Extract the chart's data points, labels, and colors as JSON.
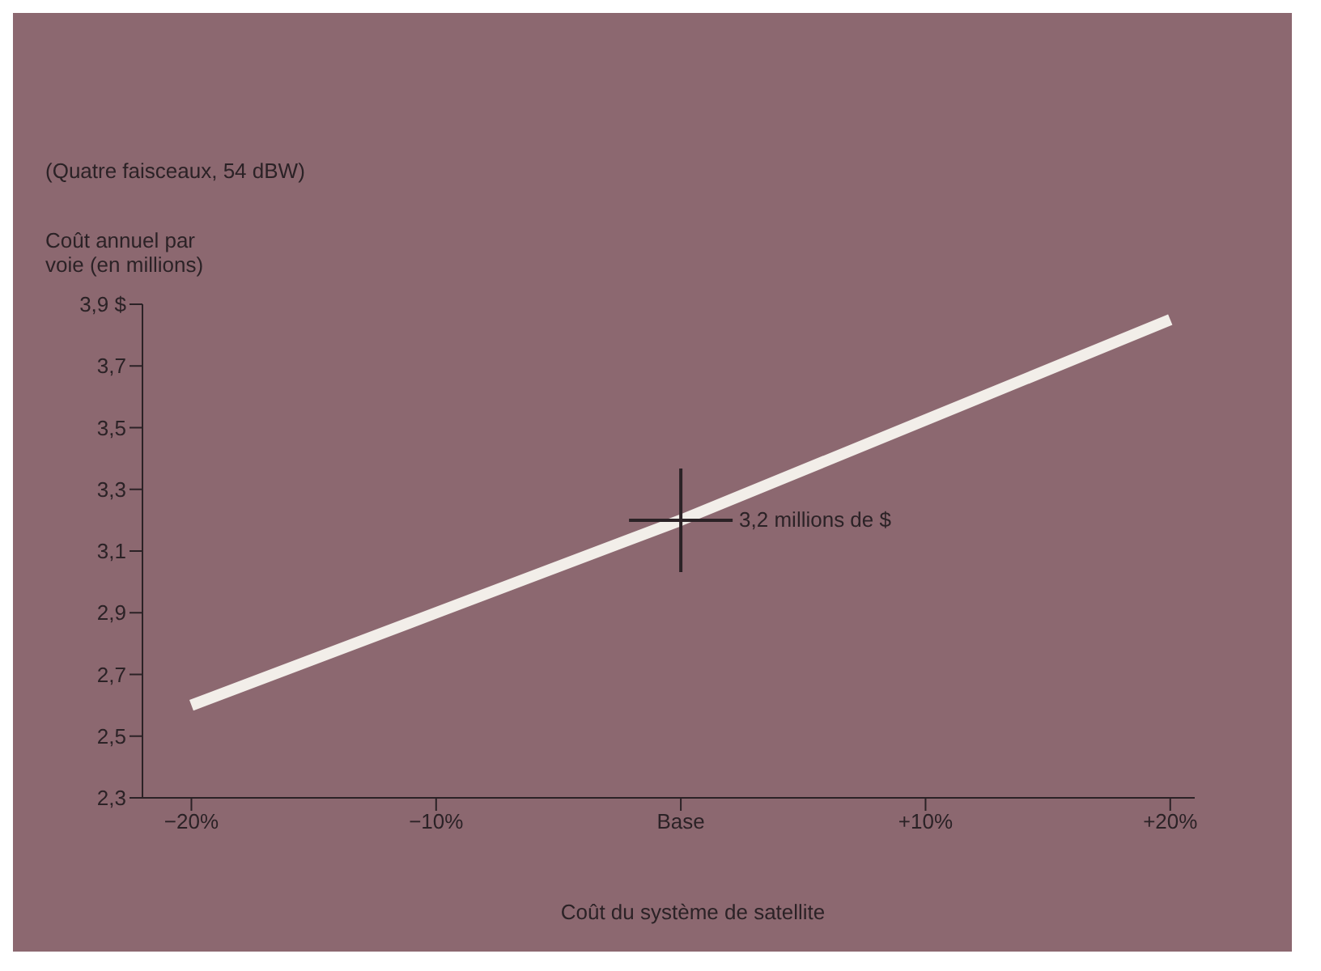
{
  "chart_data": {
    "type": "line",
    "title": "(Quatre faisceaux, 54 dBW)",
    "ylabel": "Coût annuel par voie (en millions)",
    "xlabel": "Coût du système de satellite",
    "x": [
      -20,
      0,
      20
    ],
    "series": [
      {
        "color": "#f2eee9",
        "values": [
          2.6,
          3.2,
          3.85
        ]
      }
    ],
    "xlim": [
      -22,
      21
    ],
    "xticks": [
      {
        "value": -20,
        "label": "−20%"
      },
      {
        "value": -10,
        "label": "−10%"
      },
      {
        "value": 0,
        "label": "Base"
      },
      {
        "value": 10,
        "label": "+10%"
      },
      {
        "value": 20,
        "label": "+20%"
      }
    ],
    "ylim": [
      2.3,
      3.9
    ],
    "yticks": [
      {
        "value": 2.3,
        "label": "2,3"
      },
      {
        "value": 2.5,
        "label": "2,5"
      },
      {
        "value": 2.7,
        "label": "2,7"
      },
      {
        "value": 2.9,
        "label": "2,9"
      },
      {
        "value": 3.1,
        "label": "3,1"
      },
      {
        "value": 3.3,
        "label": "3,3"
      },
      {
        "value": 3.5,
        "label": "3,5"
      },
      {
        "value": 3.7,
        "label": "3,7"
      },
      {
        "value": 3.9,
        "label": "3,9 $"
      }
    ],
    "annotations": [
      {
        "text": "3,2 millions de $",
        "x": 0,
        "y": 3.2
      }
    ],
    "grid": false,
    "legend": false,
    "marker": "none",
    "line_style": "solid"
  }
}
